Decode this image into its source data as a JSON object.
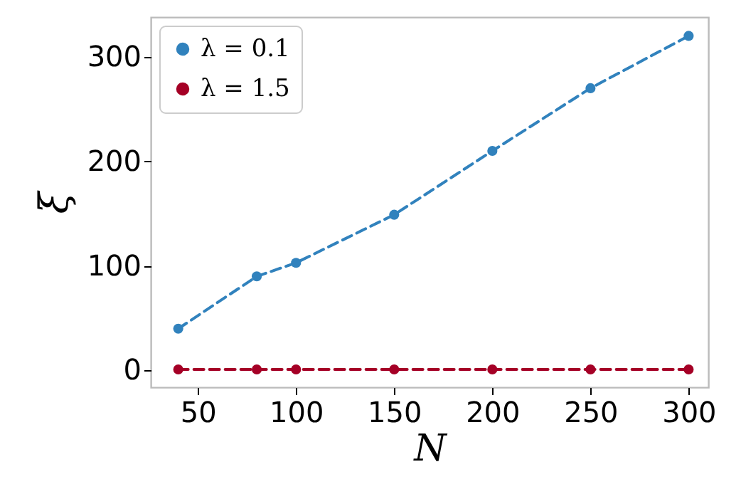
{
  "chart_data": {
    "type": "line",
    "xlabel": "N",
    "ylabel": "ξ",
    "x": [
      40,
      80,
      100,
      150,
      200,
      250,
      300
    ],
    "series": [
      {
        "name": "λ = 0.1",
        "color": "#3182bd",
        "values": [
          40,
          90,
          103,
          149,
          210,
          270,
          320
        ]
      },
      {
        "name": "λ = 1.5",
        "color": "#a50026",
        "values": [
          1,
          1,
          1,
          1,
          1,
          1,
          1
        ]
      }
    ],
    "xlim": [
      26,
      310
    ],
    "xticks": [
      50,
      100,
      150,
      200,
      250,
      300
    ],
    "ylim": [
      -16,
      338
    ],
    "yticks": [
      0,
      100,
      200,
      300
    ],
    "grid": false,
    "legend": "top left",
    "marker": "circle",
    "line_style": "dashed"
  }
}
